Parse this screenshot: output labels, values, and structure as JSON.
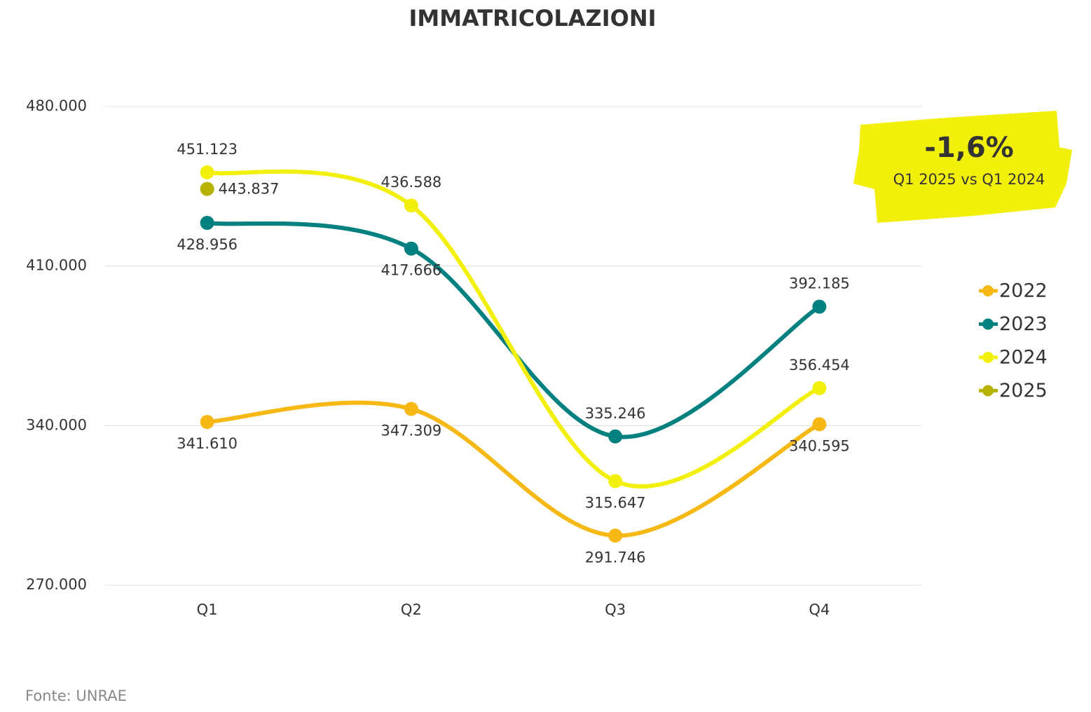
{
  "chart_data": {
    "type": "line",
    "title": "IMMATRICOLAZIONI",
    "categories": [
      "Q1",
      "Q2",
      "Q3",
      "Q4"
    ],
    "series": [
      {
        "name": "2022",
        "color": "#f5b814",
        "values": [
          341610,
          347309,
          291746,
          340595
        ],
        "value_labels": [
          "341.610",
          "347.309",
          "291.746",
          "340.595"
        ]
      },
      {
        "name": "2023",
        "color": "#00807f",
        "values": [
          428956,
          417666,
          335246,
          392185
        ],
        "value_labels": [
          "428.956",
          "417.666",
          "335.246",
          "392.185"
        ]
      },
      {
        "name": "2024",
        "color": "#f2ef0a",
        "values": [
          451123,
          436588,
          315647,
          356454
        ],
        "value_labels": [
          "451.123",
          "436.588",
          "315.647",
          "356.454"
        ]
      },
      {
        "name": "2025",
        "color": "#b5b300",
        "values": [
          443837,
          null,
          null,
          null
        ],
        "value_labels": [
          "443.837",
          null,
          null,
          null
        ]
      }
    ],
    "ylim": [
      270000,
      480000
    ],
    "yticks": [
      {
        "value": 270000,
        "label": "270.000"
      },
      {
        "value": 340000,
        "label": "340.000"
      },
      {
        "value": 410000,
        "label": "410.000"
      },
      {
        "value": 480000,
        "label": "480.000"
      }
    ],
    "grid": true,
    "legend": "right",
    "annotation": {
      "value": "-1,6%",
      "text": "Q1 2025 vs Q1 2024"
    },
    "source": "Fonte: UNRAE"
  }
}
